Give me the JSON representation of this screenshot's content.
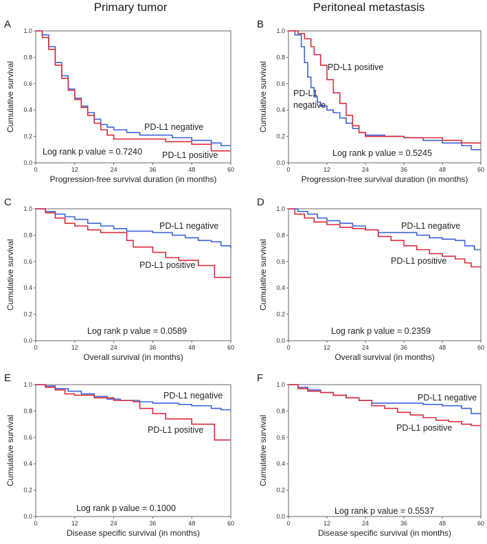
{
  "figure": {
    "column_titles": [
      "Primary tumor",
      "Peritoneal metastasis"
    ],
    "colors": {
      "negative": "#3b63d8",
      "positive": "#d92b3a"
    }
  },
  "chart_data": [
    {
      "letter": "A",
      "type": "line",
      "xlabel": "Progression-free survival duration (in months)",
      "ylabel": "Cumulative survival",
      "xlim": [
        0,
        60
      ],
      "ylim": [
        0,
        1
      ],
      "xticks": [
        0,
        12,
        24,
        36,
        48,
        60
      ],
      "yticks": [
        0.0,
        0.2,
        0.4,
        0.6,
        0.8,
        1.0
      ],
      "pvalue_text": "Log rank p value = 0.7240",
      "series": [
        {
          "name": "PD-L1 negative",
          "label": "PD-L1 negative",
          "color": "#3b63d8",
          "points": [
            [
              0,
              1.0
            ],
            [
              2,
              0.97
            ],
            [
              4,
              0.88
            ],
            [
              6,
              0.76
            ],
            [
              8,
              0.66
            ],
            [
              10,
              0.56
            ],
            [
              12,
              0.49
            ],
            [
              14,
              0.43
            ],
            [
              16,
              0.38
            ],
            [
              18,
              0.33
            ],
            [
              20,
              0.29
            ],
            [
              22,
              0.27
            ],
            [
              24,
              0.25
            ],
            [
              28,
              0.23
            ],
            [
              32,
              0.21
            ],
            [
              36,
              0.21
            ],
            [
              42,
              0.19
            ],
            [
              48,
              0.17
            ],
            [
              54,
              0.15
            ],
            [
              57,
              0.13
            ],
            [
              60,
              0.13
            ]
          ]
        },
        {
          "name": "PD-L1 positive",
          "label": "PD-L1 positive",
          "color": "#d92b3a",
          "points": [
            [
              0,
              1.0
            ],
            [
              2,
              0.95
            ],
            [
              4,
              0.86
            ],
            [
              6,
              0.74
            ],
            [
              8,
              0.64
            ],
            [
              10,
              0.55
            ],
            [
              12,
              0.48
            ],
            [
              14,
              0.42
            ],
            [
              16,
              0.36
            ],
            [
              18,
              0.3
            ],
            [
              20,
              0.25
            ],
            [
              22,
              0.21
            ],
            [
              24,
              0.18
            ],
            [
              30,
              0.18
            ],
            [
              36,
              0.18
            ],
            [
              40,
              0.16
            ],
            [
              48,
              0.14
            ],
            [
              54,
              0.09
            ],
            [
              60,
              0.09
            ]
          ]
        }
      ]
    },
    {
      "letter": "B",
      "type": "line",
      "xlabel": "Progression-free survival duration (in months)",
      "ylabel": "Cumulative survival",
      "xlim": [
        0,
        60
      ],
      "ylim": [
        0,
        1
      ],
      "xticks": [
        0,
        12,
        24,
        36,
        48,
        60
      ],
      "yticks": [
        0.0,
        0.2,
        0.4,
        0.6,
        0.8,
        1.0
      ],
      "pvalue_text": "Log rank p value = 0.5245",
      "series": [
        {
          "name": "PD-L1 negative",
          "label": "PD-L1\nnegative",
          "color": "#3b63d8",
          "points": [
            [
              0,
              1.0
            ],
            [
              2,
              0.97
            ],
            [
              4,
              0.88
            ],
            [
              5,
              0.76
            ],
            [
              6,
              0.65
            ],
            [
              7,
              0.57
            ],
            [
              8,
              0.5
            ],
            [
              9,
              0.46
            ],
            [
              10,
              0.43
            ],
            [
              12,
              0.4
            ],
            [
              14,
              0.38
            ],
            [
              16,
              0.34
            ],
            [
              18,
              0.3
            ],
            [
              20,
              0.26
            ],
            [
              22,
              0.23
            ],
            [
              24,
              0.21
            ],
            [
              30,
              0.2
            ],
            [
              36,
              0.19
            ],
            [
              42,
              0.17
            ],
            [
              48,
              0.15
            ],
            [
              54,
              0.13
            ],
            [
              57,
              0.1
            ],
            [
              60,
              0.1
            ]
          ]
        },
        {
          "name": "PD-L1 positive",
          "label": "PD-L1 positive",
          "color": "#d92b3a",
          "points": [
            [
              0,
              1.0
            ],
            [
              3,
              0.98
            ],
            [
              5,
              0.94
            ],
            [
              7,
              0.88
            ],
            [
              8,
              0.82
            ],
            [
              10,
              0.74
            ],
            [
              12,
              0.63
            ],
            [
              14,
              0.53
            ],
            [
              16,
              0.45
            ],
            [
              18,
              0.36
            ],
            [
              20,
              0.28
            ],
            [
              22,
              0.23
            ],
            [
              24,
              0.2
            ],
            [
              30,
              0.2
            ],
            [
              36,
              0.19
            ],
            [
              42,
              0.19
            ],
            [
              48,
              0.17
            ],
            [
              54,
              0.15
            ],
            [
              60,
              0.15
            ]
          ]
        }
      ]
    },
    {
      "letter": "C",
      "type": "line",
      "xlabel": "Overall survival (in months)",
      "ylabel": "Cumulative survival",
      "xlim": [
        0,
        60
      ],
      "ylim": [
        0,
        1
      ],
      "xticks": [
        0,
        12,
        24,
        36,
        48,
        60
      ],
      "yticks": [
        0.0,
        0.2,
        0.4,
        0.6,
        0.8,
        1.0
      ],
      "pvalue_text": "Log rank p value = 0.0589",
      "series": [
        {
          "name": "PD-L1 negative",
          "label": "PD-L1 negative",
          "color": "#3b63d8",
          "points": [
            [
              0,
              1.0
            ],
            [
              3,
              0.98
            ],
            [
              6,
              0.96
            ],
            [
              9,
              0.94
            ],
            [
              12,
              0.92
            ],
            [
              16,
              0.89
            ],
            [
              20,
              0.87
            ],
            [
              24,
              0.85
            ],
            [
              28,
              0.83
            ],
            [
              36,
              0.82
            ],
            [
              42,
              0.8
            ],
            [
              46,
              0.78
            ],
            [
              50,
              0.76
            ],
            [
              54,
              0.75
            ],
            [
              57,
              0.72
            ],
            [
              60,
              0.7
            ]
          ]
        },
        {
          "name": "PD-L1 positive",
          "label": "PD-L1 positive",
          "color": "#d92b3a",
          "points": [
            [
              0,
              1.0
            ],
            [
              3,
              0.97
            ],
            [
              6,
              0.93
            ],
            [
              9,
              0.89
            ],
            [
              12,
              0.87
            ],
            [
              16,
              0.84
            ],
            [
              20,
              0.82
            ],
            [
              26,
              0.82
            ],
            [
              28,
              0.76
            ],
            [
              30,
              0.71
            ],
            [
              36,
              0.67
            ],
            [
              40,
              0.63
            ],
            [
              44,
              0.61
            ],
            [
              48,
              0.61
            ],
            [
              50,
              0.57
            ],
            [
              54,
              0.57
            ],
            [
              55,
              0.48
            ],
            [
              60,
              0.48
            ]
          ]
        }
      ]
    },
    {
      "letter": "D",
      "type": "line",
      "xlabel": "Overall survival (in months)",
      "ylabel": "Cumulative survival",
      "xlim": [
        0,
        60
      ],
      "ylim": [
        0,
        1
      ],
      "xticks": [
        0,
        12,
        24,
        36,
        48,
        60
      ],
      "yticks": [
        0.0,
        0.2,
        0.4,
        0.6,
        0.8,
        1.0
      ],
      "pvalue_text": "Log rank p value = 0.2359",
      "series": [
        {
          "name": "PD-L1 negative",
          "label": "PD-L1 negative",
          "color": "#3b63d8",
          "points": [
            [
              0,
              1.0
            ],
            [
              3,
              0.98
            ],
            [
              6,
              0.96
            ],
            [
              9,
              0.93
            ],
            [
              12,
              0.91
            ],
            [
              16,
              0.89
            ],
            [
              20,
              0.87
            ],
            [
              24,
              0.84
            ],
            [
              28,
              0.82
            ],
            [
              36,
              0.82
            ],
            [
              40,
              0.8
            ],
            [
              44,
              0.78
            ],
            [
              48,
              0.77
            ],
            [
              52,
              0.76
            ],
            [
              55,
              0.72
            ],
            [
              58,
              0.69
            ],
            [
              60,
              0.69
            ]
          ]
        },
        {
          "name": "PD-L1 positive",
          "label": "PD-L1 positive",
          "color": "#d92b3a",
          "points": [
            [
              0,
              1.0
            ],
            [
              2,
              0.96
            ],
            [
              5,
              0.93
            ],
            [
              8,
              0.9
            ],
            [
              12,
              0.88
            ],
            [
              16,
              0.86
            ],
            [
              20,
              0.85
            ],
            [
              24,
              0.84
            ],
            [
              28,
              0.79
            ],
            [
              32,
              0.76
            ],
            [
              36,
              0.72
            ],
            [
              40,
              0.69
            ],
            [
              44,
              0.66
            ],
            [
              48,
              0.64
            ],
            [
              52,
              0.62
            ],
            [
              55,
              0.59
            ],
            [
              57,
              0.56
            ],
            [
              60,
              0.56
            ]
          ]
        }
      ]
    },
    {
      "letter": "E",
      "type": "line",
      "xlabel": "Disease specific survival (in months)",
      "ylabel": "Cumulative survival",
      "xlim": [
        0,
        60
      ],
      "ylim": [
        0,
        1
      ],
      "xticks": [
        0,
        12,
        24,
        36,
        48,
        60
      ],
      "yticks": [
        0.0,
        0.2,
        0.4,
        0.6,
        0.8,
        1.0
      ],
      "pvalue_text": "Log rank p value = 0.1000",
      "series": [
        {
          "name": "PD-L1 negative",
          "label": "PD-L1 negative",
          "color": "#3b63d8",
          "points": [
            [
              0,
              1.0
            ],
            [
              3,
              0.99
            ],
            [
              6,
              0.97
            ],
            [
              10,
              0.95
            ],
            [
              14,
              0.93
            ],
            [
              18,
              0.91
            ],
            [
              22,
              0.89
            ],
            [
              26,
              0.88
            ],
            [
              32,
              0.87
            ],
            [
              36,
              0.86
            ],
            [
              40,
              0.86
            ],
            [
              44,
              0.85
            ],
            [
              48,
              0.84
            ],
            [
              54,
              0.82
            ],
            [
              57,
              0.81
            ],
            [
              60,
              0.81
            ]
          ]
        },
        {
          "name": "PD-L1 positive",
          "label": "PD-L1 positive",
          "color": "#d92b3a",
          "points": [
            [
              0,
              1.0
            ],
            [
              3,
              0.98
            ],
            [
              6,
              0.96
            ],
            [
              9,
              0.93
            ],
            [
              12,
              0.92
            ],
            [
              18,
              0.9
            ],
            [
              24,
              0.88
            ],
            [
              30,
              0.87
            ],
            [
              32,
              0.82
            ],
            [
              36,
              0.78
            ],
            [
              40,
              0.74
            ],
            [
              44,
              0.74
            ],
            [
              48,
              0.7
            ],
            [
              54,
              0.7
            ],
            [
              55,
              0.58
            ],
            [
              60,
              0.58
            ]
          ]
        }
      ]
    },
    {
      "letter": "F",
      "type": "line",
      "xlabel": "Disease specific survival (in months)",
      "ylabel": "Cumulative survival",
      "xlim": [
        0,
        60
      ],
      "ylim": [
        0,
        1
      ],
      "xticks": [
        0,
        12,
        24,
        36,
        48,
        60
      ],
      "yticks": [
        0.0,
        0.2,
        0.4,
        0.6,
        0.8,
        1.0
      ],
      "pvalue_text": "Log rank p value = 0.5537",
      "series": [
        {
          "name": "PD-L1 negative",
          "label": "PD-L1 negative",
          "color": "#3b63d8",
          "points": [
            [
              0,
              1.0
            ],
            [
              3,
              0.98
            ],
            [
              6,
              0.96
            ],
            [
              10,
              0.94
            ],
            [
              14,
              0.92
            ],
            [
              18,
              0.9
            ],
            [
              22,
              0.88
            ],
            [
              26,
              0.86
            ],
            [
              30,
              0.86
            ],
            [
              36,
              0.86
            ],
            [
              42,
              0.85
            ],
            [
              48,
              0.84
            ],
            [
              54,
              0.82
            ],
            [
              57,
              0.78
            ],
            [
              60,
              0.78
            ]
          ]
        },
        {
          "name": "PD-L1 positive",
          "label": "PD-L1 positive",
          "color": "#d92b3a",
          "points": [
            [
              0,
              1.0
            ],
            [
              3,
              0.97
            ],
            [
              6,
              0.95
            ],
            [
              10,
              0.94
            ],
            [
              14,
              0.92
            ],
            [
              18,
              0.9
            ],
            [
              22,
              0.88
            ],
            [
              26,
              0.84
            ],
            [
              30,
              0.82
            ],
            [
              34,
              0.79
            ],
            [
              38,
              0.77
            ],
            [
              42,
              0.75
            ],
            [
              46,
              0.73
            ],
            [
              50,
              0.72
            ],
            [
              54,
              0.7
            ],
            [
              57,
              0.69
            ],
            [
              60,
              0.69
            ]
          ]
        }
      ]
    }
  ]
}
